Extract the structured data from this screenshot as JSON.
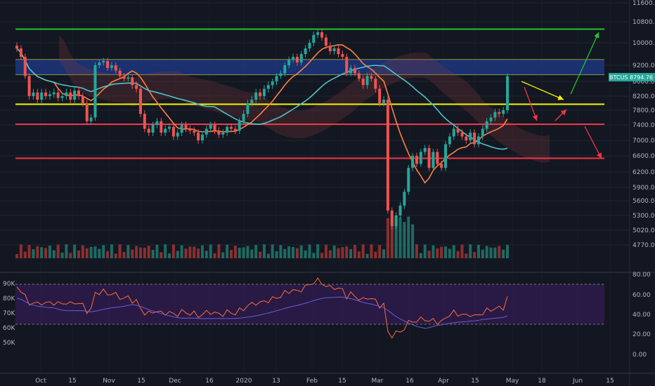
{
  "chart_data": {
    "type": "candlestick",
    "symbol_tag": "BTCUSD",
    "last_price_tag": "8794.76",
    "price_axis": {
      "min": 4500,
      "max": 11600,
      "ticks": [
        "11600.00",
        "10800.00",
        "10000.00",
        "9200.00",
        "8600.00",
        "8200.00",
        "7800.00",
        "7400.00",
        "7000.00",
        "6600.00",
        "6200.00",
        "5900.00",
        "5600.00",
        "5300.00",
        "5020.00",
        "4770.00"
      ]
    },
    "date_axis": [
      "Oct",
      "15",
      "Nov",
      "15",
      "Dec",
      "16",
      "2020",
      "13",
      "Feb",
      "15",
      "Mar",
      "16",
      "Apr",
      "15",
      "May",
      "18",
      "Jun",
      "15"
    ],
    "horizontal_levels": [
      {
        "price": 10520,
        "color": "#22c32e"
      },
      {
        "price": 7970,
        "color": "#f5f500"
      },
      {
        "price": 7420,
        "color": "#f23645"
      },
      {
        "price": 6540,
        "color": "#f23645"
      }
    ],
    "resistance_zone": {
      "low": 8850,
      "high": 9400,
      "color": "#1e3a8a"
    },
    "candles_approx_close": [
      9800,
      9500,
      8800,
      8200,
      8300,
      8100,
      8300,
      8200,
      8250,
      8300,
      8150,
      8200,
      8300,
      8100,
      8350,
      8200,
      8000,
      7500,
      7600,
      9200,
      9300,
      9350,
      9100,
      9200,
      9000,
      8800,
      8700,
      8750,
      8500,
      8400,
      7700,
      7300,
      7200,
      7400,
      7500,
      7200,
      7300,
      7350,
      7100,
      7200,
      7400,
      7300,
      7250,
      7200,
      7000,
      7150,
      7300,
      7400,
      7250,
      7150,
      7200,
      7350,
      7300,
      7250,
      7500,
      7700,
      8000,
      8100,
      8300,
      8200,
      8400,
      8500,
      8600,
      8800,
      8900,
      9200,
      9400,
      9500,
      9300,
      9600,
      9800,
      10000,
      10300,
      10400,
      10200,
      9900,
      9700,
      9800,
      9600,
      9500,
      8900,
      9100,
      8900,
      8700,
      8500,
      8800,
      8700,
      8400,
      8000,
      8100,
      5400,
      5100,
      5300,
      5500,
      5800,
      6300,
      6600,
      6400,
      6700,
      6800,
      6300,
      6700,
      6400,
      6300,
      6900,
      7100,
      7300,
      7200,
      7100,
      7000,
      7200,
      6900,
      7100,
      7300,
      7500,
      7600,
      7750,
      7700,
      7800,
      8794
    ]
  }
}
